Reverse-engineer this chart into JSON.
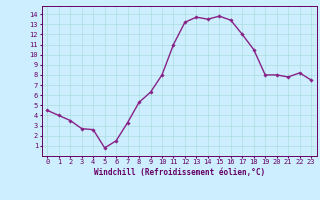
{
  "x": [
    0,
    1,
    2,
    3,
    4,
    5,
    6,
    7,
    8,
    9,
    10,
    11,
    12,
    13,
    14,
    15,
    16,
    17,
    18,
    19,
    20,
    21,
    22,
    23
  ],
  "y": [
    4.5,
    4.0,
    3.5,
    2.7,
    2.6,
    0.8,
    1.5,
    3.3,
    5.3,
    6.3,
    8.0,
    11.0,
    13.2,
    13.7,
    13.5,
    13.8,
    13.4,
    12.0,
    10.5,
    8.0,
    8.0,
    7.8,
    8.2,
    7.5
  ],
  "line_color": "#882288",
  "marker": "D",
  "marker_size": 1.8,
  "bg_color": "#cceeff",
  "grid_color": "#aadddd",
  "axis_label_color": "#660066",
  "tick_color": "#660066",
  "xlabel": "Windchill (Refroidissement éolien,°C)",
  "spine_color": "#660066",
  "xlim": [
    -0.5,
    23.5
  ],
  "ylim": [
    0,
    14.8
  ],
  "yticks": [
    1,
    2,
    3,
    4,
    5,
    6,
    7,
    8,
    9,
    10,
    11,
    12,
    13,
    14
  ],
  "xticks": [
    0,
    1,
    2,
    3,
    4,
    5,
    6,
    7,
    8,
    9,
    10,
    11,
    12,
    13,
    14,
    15,
    16,
    17,
    18,
    19,
    20,
    21,
    22,
    23
  ],
  "linewidth": 1.0,
  "tick_fontsize": 5.0,
  "xlabel_fontsize": 5.5
}
